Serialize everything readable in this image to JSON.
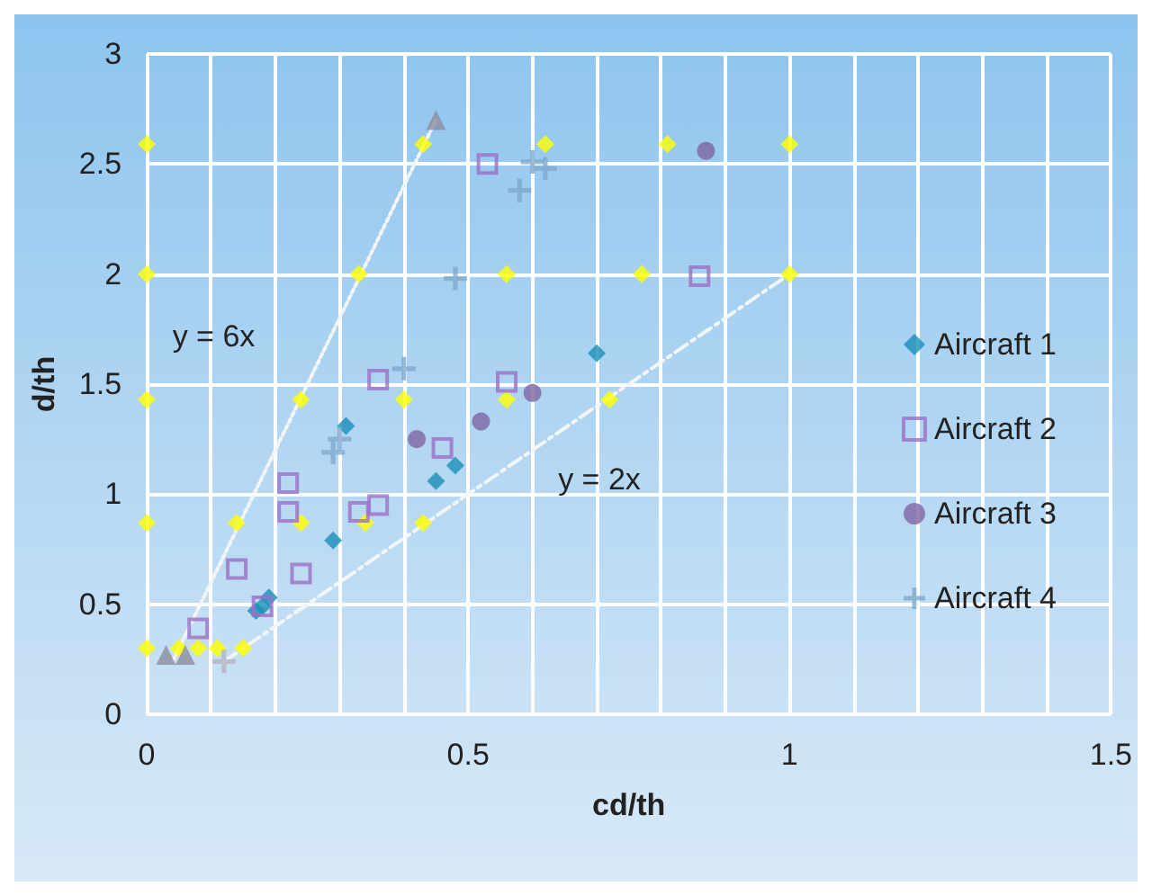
{
  "chart_data": {
    "type": "scatter",
    "xlabel": "cd/th",
    "ylabel": "d/th",
    "xlim": [
      0,
      1.5
    ],
    "xticks": [
      0,
      {
        "value": 0.1,
        "label": null
      },
      {
        "value": 0.2,
        "label": null
      },
      {
        "value": 0.3,
        "label": null
      },
      {
        "value": 0.4,
        "label": null
      },
      0.5,
      {
        "value": 0.6,
        "label": null
      },
      {
        "value": 0.7,
        "label": null
      },
      {
        "value": 0.8,
        "label": null
      },
      {
        "value": 0.9,
        "label": null
      },
      1,
      {
        "value": 1.1,
        "label": null
      },
      {
        "value": 1.2,
        "label": null
      },
      {
        "value": 1.3,
        "label": null
      },
      {
        "value": 1.4,
        "label": null
      },
      1.5
    ],
    "ylim": [
      0,
      3
    ],
    "yticks": [
      0,
      0.5,
      1,
      1.5,
      2,
      2.5,
      3
    ],
    "grid": true,
    "legend": "right",
    "series": [
      {
        "name": "y = 6x",
        "type": "line",
        "color": "#f2f6fb",
        "line_style": "dotted",
        "marker": "none",
        "x": [
          0.04,
          0.45
        ],
        "values": [
          0.24,
          2.7
        ]
      },
      {
        "name": "y = 2x",
        "type": "line",
        "color": "#f2f6fb",
        "line_style": "dashed",
        "marker": "none",
        "x": [
          0.12,
          1
        ],
        "values": [
          0.24,
          2
        ]
      },
      {
        "color": "#ffff00",
        "marker": "diamond",
        "x": [
          0,
          0.43,
          0.62,
          0.81,
          1,
          0,
          0.33,
          0.56,
          0.77,
          1,
          0,
          0.24,
          0.4,
          0.56,
          0.72,
          0,
          0.14,
          0.24,
          0.34,
          0.43,
          0,
          0.05,
          0.08,
          0.11,
          0.15
        ],
        "values": [
          2.59,
          2.59,
          2.59,
          2.59,
          2.59,
          2,
          2,
          2,
          2,
          2,
          1.43,
          1.43,
          1.43,
          1.43,
          1.43,
          0.87,
          0.87,
          0.87,
          0.87,
          0.87,
          0.3,
          0.3,
          0.3,
          0.3,
          0.3
        ]
      },
      {
        "color": "#8c8c9e",
        "marker": "triangle",
        "x": [
          0.45,
          0.03,
          0.06
        ],
        "values": [
          2.7,
          0.27,
          0.27
        ]
      },
      {
        "color": "#b4b4be",
        "marker": "cross",
        "x": [
          0.12
        ],
        "values": [
          0.24
        ]
      },
      {
        "name": "Aircraft 1",
        "color": "#1a8fb8",
        "marker": "diamond",
        "x": [
          0.31,
          0.29,
          0.45,
          0.48,
          0.19,
          0.18,
          0.17,
          0.7
        ],
        "values": [
          1.31,
          0.79,
          1.06,
          1.13,
          0.53,
          0.49,
          0.47,
          1.64
        ]
      },
      {
        "name": "Aircraft 2",
        "color": "#9b6fc6",
        "marker": "square",
        "x": [
          0.53,
          0.86,
          0.36,
          0.56,
          0.46,
          0.22,
          0.22,
          0.36,
          0.33,
          0.14,
          0.24,
          0.18,
          0.08
        ],
        "values": [
          2.5,
          1.99,
          1.52,
          1.51,
          1.21,
          1.05,
          0.92,
          0.95,
          0.92,
          0.66,
          0.64,
          0.49,
          0.39
        ]
      },
      {
        "name": "Aircraft 3",
        "color": "#8064a2",
        "marker": "circle",
        "x": [
          0.87,
          0.6,
          0.52,
          0.42
        ],
        "values": [
          2.56,
          1.46,
          1.33,
          1.25
        ]
      },
      {
        "name": "Aircraft 4",
        "color": "#7fa9cc",
        "marker": "cross",
        "x": [
          0.6,
          0.62,
          0.58,
          0.48,
          0.4,
          0.3,
          0.29
        ],
        "values": [
          2.51,
          2.48,
          2.38,
          1.98,
          1.57,
          1.25,
          1.19
        ]
      }
    ]
  }
}
